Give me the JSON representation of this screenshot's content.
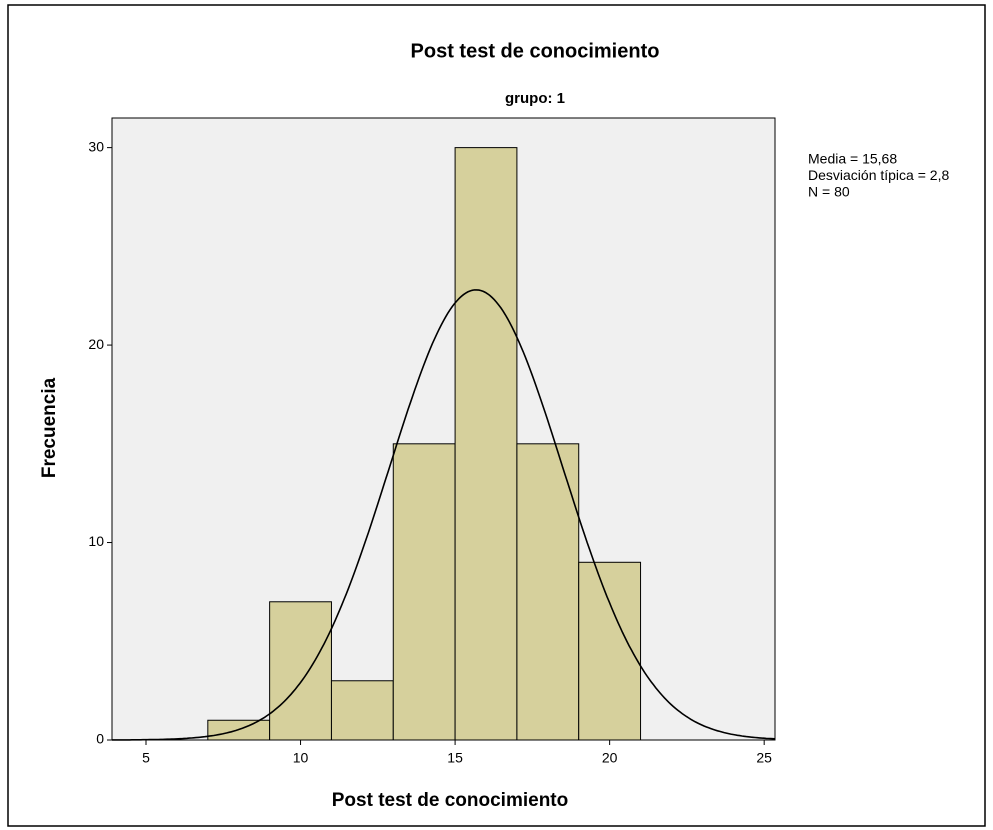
{
  "chart_data": {
    "type": "histogram",
    "title": "Post test de conocimiento",
    "subtitle": "grupo: 1",
    "x_label": "Post test de conocimiento",
    "y_label": "Frecuencia",
    "bins": [
      7,
      9,
      11,
      13,
      15,
      17,
      19,
      21
    ],
    "values": [
      1,
      7,
      3,
      15,
      30,
      15,
      9
    ],
    "color": "#d6d09c",
    "xlim": [
      3.9,
      25.35
    ],
    "xticks": [
      5,
      10,
      15,
      20,
      25
    ],
    "ylim": [
      0,
      31.5
    ],
    "yticks": [
      0,
      10,
      20,
      30
    ],
    "stats": [
      {
        "value": 15.68,
        "label": "Media = 15,68"
      },
      {
        "value": 2.8,
        "label": "Desviación típica = 2,8"
      },
      {
        "value": 80,
        "label": "N = 80"
      }
    ]
  }
}
